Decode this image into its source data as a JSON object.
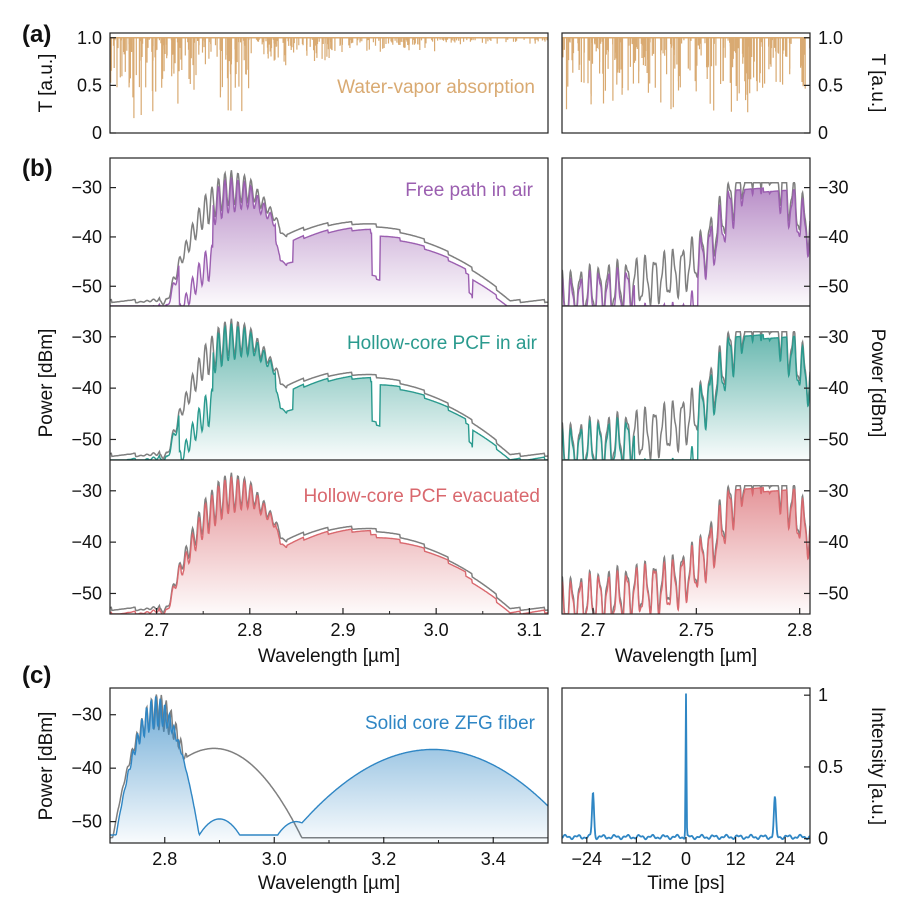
{
  "figure": {
    "panel_labels": [
      "(a)",
      "(b)",
      "(c)"
    ],
    "colors": {
      "water": "#d9aa72",
      "air": "#9b5fb0",
      "hcair": "#2a9a8e",
      "evac": "#d9686e",
      "zfg": "#2f86c4",
      "ref": "#7f7f7f",
      "axis": "#222222"
    }
  },
  "chart_data": [
    {
      "id": "a-left",
      "type": "line",
      "title": "",
      "annotation": "Water-vapor absorption",
      "ylabel": "T [a.u.]",
      "xlim": [
        2.65,
        3.12
      ],
      "ylim": [
        0,
        1.05
      ],
      "yticks": [
        0,
        0.5,
        1.0
      ],
      "ytick_labels": [
        "0",
        "0.5",
        "1.0"
      ],
      "series": [
        {
          "name": "Water-vapor absorption",
          "color_key": "water",
          "kind": "absorption",
          "bands": [
            [
              2.65,
              2.8,
              0.85
            ],
            [
              2.8,
              2.9,
              0.35
            ],
            [
              2.9,
              3.0,
              0.15
            ],
            [
              3.0,
              3.12,
              0.07
            ]
          ]
        }
      ]
    },
    {
      "id": "a-right",
      "type": "line",
      "ylabel": "T [a.u.]",
      "xlim": [
        2.685,
        2.805
      ],
      "ylim": [
        0,
        1.05
      ],
      "yticks": [
        0,
        0.5,
        1.0
      ],
      "ytick_labels": [
        "0",
        "0.5",
        "1.0"
      ],
      "series": [
        {
          "name": "Water-vapor absorption",
          "color_key": "water",
          "kind": "absorption",
          "bands": [
            [
              2.685,
              2.805,
              0.85
            ]
          ]
        }
      ]
    },
    {
      "id": "b1-left",
      "type": "line",
      "annotation": "Free path in air",
      "xlim": [
        2.65,
        3.12
      ],
      "ylim": [
        -54,
        -24
      ],
      "yticks": [
        -50,
        -40,
        -30
      ],
      "ytick_labels": [
        "−50",
        "−40",
        "−30"
      ],
      "series": [
        {
          "name": "Reference",
          "color_key": "ref",
          "profile": "broad-left"
        },
        {
          "name": "Free path in air",
          "color_key": "air",
          "profile": "broad-left",
          "absorption": 1.0,
          "offset_db": -1.5
        }
      ]
    },
    {
      "id": "b1-right",
      "type": "line",
      "xlim": [
        2.685,
        2.805
      ],
      "ylim": [
        -54,
        -24
      ],
      "yticks": [
        -50,
        -40,
        -30
      ],
      "ytick_labels": [
        "−50",
        "−40",
        "−30"
      ],
      "series": [
        {
          "name": "Reference",
          "color_key": "ref",
          "profile": "zoom"
        },
        {
          "name": "Free path in air",
          "color_key": "air",
          "profile": "zoom",
          "absorption": 1.0,
          "offset_db": -1.5
        }
      ]
    },
    {
      "id": "b2-left",
      "type": "line",
      "annotation": "Hollow-core PCF in air",
      "ylabel": "Power [dBm]",
      "xlim": [
        2.65,
        3.12
      ],
      "ylim": [
        -54,
        -24
      ],
      "yticks": [
        -50,
        -40,
        -30
      ],
      "ytick_labels": [
        "−50",
        "−40",
        "−30"
      ],
      "series": [
        {
          "name": "Reference",
          "color_key": "ref",
          "profile": "broad-left"
        },
        {
          "name": "Hollow-core PCF in air",
          "color_key": "hcair",
          "profile": "broad-left",
          "absorption": 0.9,
          "offset_db": -1.0
        }
      ]
    },
    {
      "id": "b2-right",
      "type": "line",
      "ylabel": "Power [dBm]",
      "xlim": [
        2.685,
        2.805
      ],
      "ylim": [
        -54,
        -24
      ],
      "yticks": [
        -50,
        -40,
        -30
      ],
      "ytick_labels": [
        "−50",
        "−40",
        "−30"
      ],
      "series": [
        {
          "name": "Reference",
          "color_key": "ref",
          "profile": "zoom"
        },
        {
          "name": "Hollow-core PCF in air",
          "color_key": "hcair",
          "profile": "zoom",
          "absorption": 1.1,
          "offset_db": -1.0
        }
      ]
    },
    {
      "id": "b3-left",
      "type": "line",
      "annotation": "Hollow-core PCF evacuated",
      "xlabel": "Wavelength [µm]",
      "xlim": [
        2.65,
        3.12
      ],
      "xticks": [
        2.7,
        2.8,
        2.9,
        3.0,
        3.1
      ],
      "xtick_labels": [
        "2.7",
        "2.8",
        "2.9",
        "3.0",
        "3.1"
      ],
      "ylim": [
        -54,
        -24
      ],
      "yticks": [
        -50,
        -40,
        -30
      ],
      "ytick_labels": [
        "−50",
        "−40",
        "−30"
      ],
      "series": [
        {
          "name": "Reference",
          "color_key": "ref",
          "profile": "broad-left"
        },
        {
          "name": "Hollow-core PCF evacuated",
          "color_key": "evac",
          "profile": "broad-left",
          "absorption": 0.0,
          "offset_db": -0.8
        }
      ]
    },
    {
      "id": "b3-right",
      "type": "line",
      "xlabel": "Wavelength [µm]",
      "xlim": [
        2.685,
        2.805
      ],
      "xticks": [
        2.7,
        2.75,
        2.8
      ],
      "xtick_labels": [
        "2.7",
        "2.75",
        "2.8"
      ],
      "ylim": [
        -54,
        -24
      ],
      "yticks": [
        -50,
        -40,
        -30
      ],
      "ytick_labels": [
        "−50",
        "−40",
        "−30"
      ],
      "series": [
        {
          "name": "Reference",
          "color_key": "ref",
          "profile": "zoom"
        },
        {
          "name": "Hollow-core PCF evacuated",
          "color_key": "evac",
          "profile": "zoom",
          "absorption": 0.0,
          "offset_db": -0.8
        }
      ]
    },
    {
      "id": "c-left",
      "type": "line",
      "annotation": "Solid core ZFG fiber",
      "xlabel": "Wavelength [µm]",
      "ylabel": "Power [dBm]",
      "xlim": [
        2.7,
        3.5
      ],
      "xticks": [
        2.8,
        3.0,
        3.2,
        3.4
      ],
      "xtick_labels": [
        "2.8",
        "3.0",
        "3.2",
        "3.4"
      ],
      "ylim": [
        -54,
        -25
      ],
      "yticks": [
        -50,
        -40,
        -30
      ],
      "ytick_labels": [
        "−50",
        "−40",
        "−30"
      ],
      "series": [
        {
          "name": "Reference",
          "color_key": "ref",
          "profile": "broad-c"
        },
        {
          "name": "Solid core ZFG fiber",
          "color_key": "zfg",
          "profile": "zfg"
        }
      ]
    },
    {
      "id": "c-right",
      "type": "line",
      "xlabel": "Time [ps]",
      "ylabel": "Intensity [a.u.]",
      "xlim": [
        -30,
        30
      ],
      "xticks": [
        -24,
        -12,
        0,
        12,
        24
      ],
      "xtick_labels": [
        "−24",
        "−12",
        "0",
        "12",
        "24"
      ],
      "ylim": [
        -0.03,
        1.05
      ],
      "yticks": [
        0,
        0.5,
        1.0
      ],
      "ytick_labels": [
        "0",
        "0.5",
        "1"
      ],
      "series": [
        {
          "name": "Intensity",
          "color_key": "zfg",
          "profile": "acf",
          "peaks": [
            [
              0,
              1.0
            ],
            [
              -22.5,
              0.31
            ],
            [
              21.5,
              0.27
            ]
          ]
        }
      ]
    }
  ]
}
